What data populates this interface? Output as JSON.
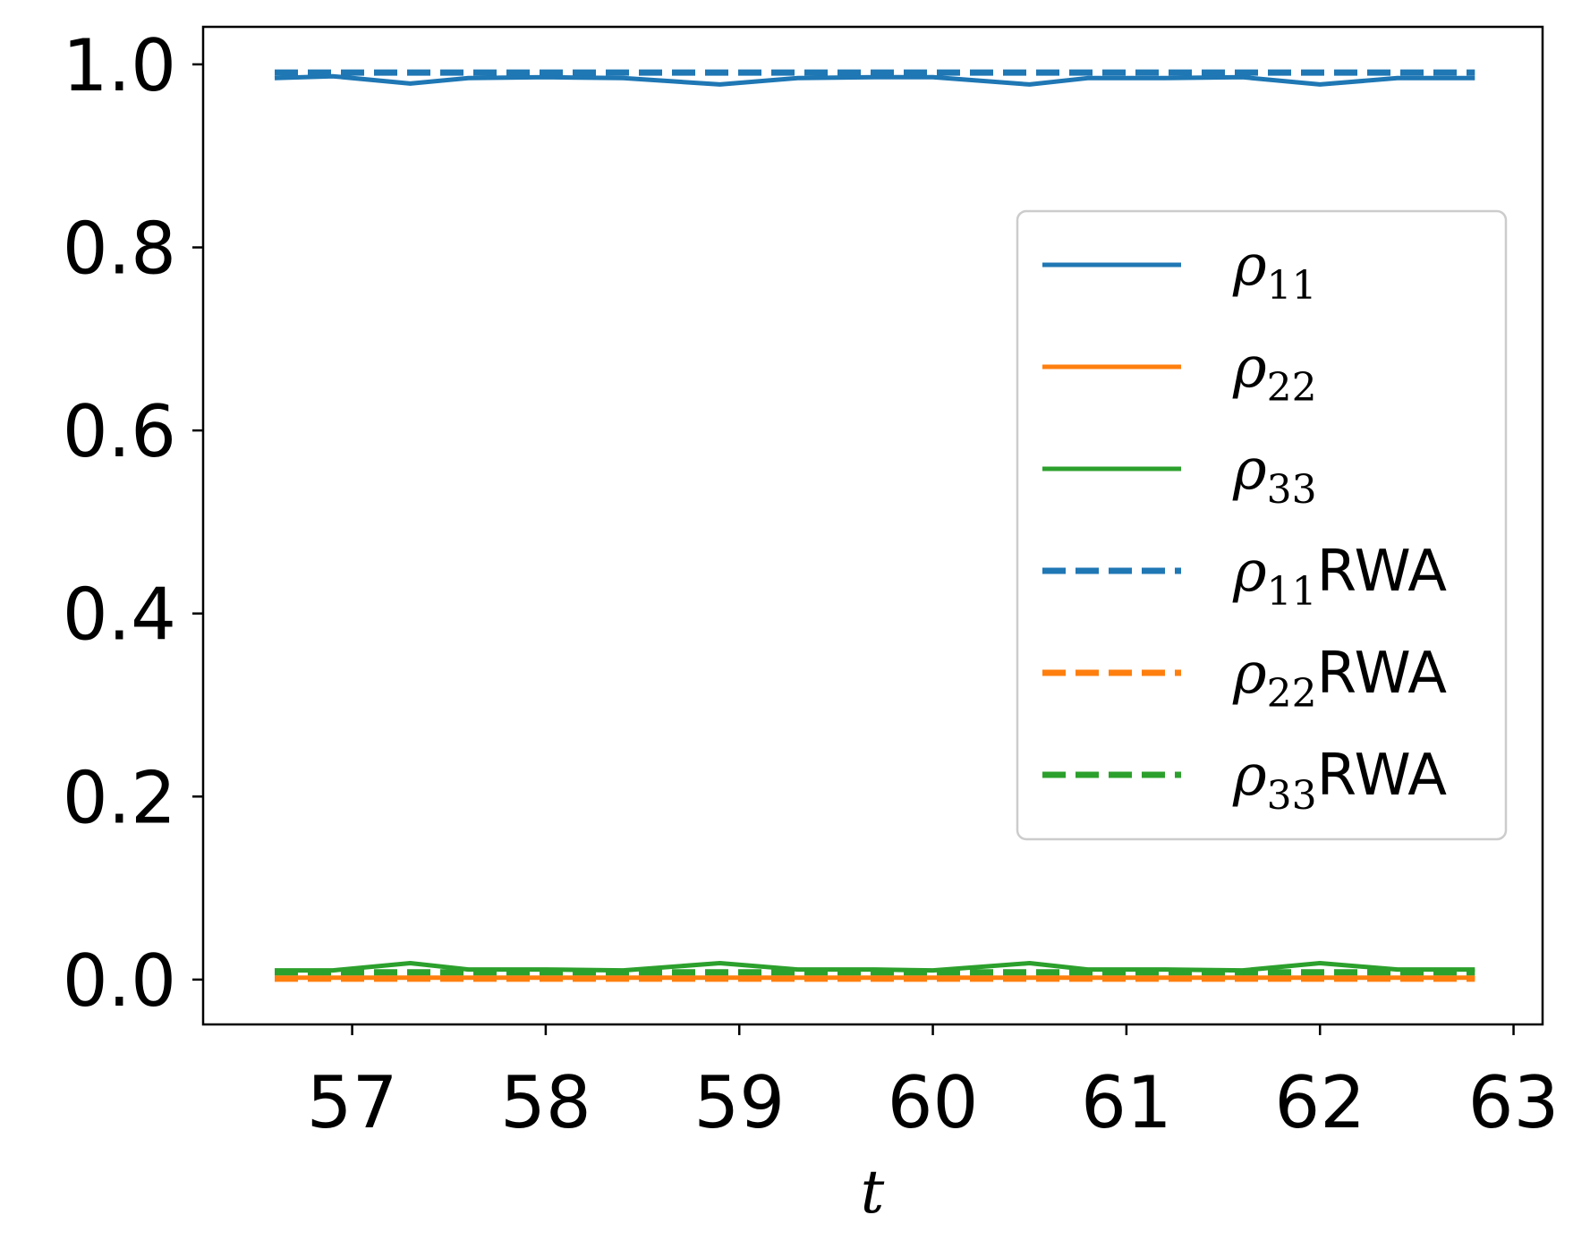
{
  "chart_data": {
    "type": "line",
    "title": "",
    "xlabel": "t",
    "ylabel": "",
    "xlim": [
      56.23,
      63.15
    ],
    "ylim": [
      -0.049,
      1.041
    ],
    "xticks": [
      57,
      58,
      59,
      60,
      61,
      62,
      63
    ],
    "xtick_labels": [
      "57",
      "58",
      "59",
      "60",
      "61",
      "62",
      "63"
    ],
    "yticks": [
      0.0,
      0.2,
      0.4,
      0.6,
      0.8,
      1.0
    ],
    "ytick_labels": [
      "0.0",
      "0.2",
      "0.4",
      "0.6",
      "0.8",
      "1.0"
    ],
    "grid": false,
    "legend_position": "center-right",
    "series": [
      {
        "name": "ρ11",
        "name_base": "ρ",
        "name_sub": "11",
        "name_suffix": "",
        "color": "#1f77b4",
        "style": "solid",
        "x": [
          56.6,
          56.9,
          57.3,
          57.6,
          58.0,
          58.4,
          58.9,
          59.3,
          59.7,
          60.0,
          60.5,
          60.8,
          61.2,
          61.6,
          62.0,
          62.4,
          62.8
        ],
        "y": [
          0.985,
          0.987,
          0.979,
          0.985,
          0.986,
          0.985,
          0.978,
          0.985,
          0.986,
          0.986,
          0.978,
          0.985,
          0.985,
          0.986,
          0.978,
          0.985,
          0.985
        ]
      },
      {
        "name": "ρ22",
        "name_base": "ρ",
        "name_sub": "22",
        "name_suffix": "",
        "color": "#ff7f0e",
        "style": "solid",
        "x": [
          56.6,
          57.6,
          58.6,
          59.6,
          60.6,
          61.6,
          62.8
        ],
        "y": [
          0.002,
          0.002,
          0.002,
          0.002,
          0.002,
          0.002,
          0.002
        ]
      },
      {
        "name": "ρ33",
        "name_base": "ρ",
        "name_sub": "33",
        "name_suffix": "",
        "color": "#2ca02c",
        "style": "solid",
        "x": [
          56.6,
          56.9,
          57.3,
          57.6,
          58.0,
          58.4,
          58.9,
          59.3,
          59.7,
          60.0,
          60.5,
          60.8,
          61.2,
          61.6,
          62.0,
          62.4,
          62.8
        ],
        "y": [
          0.01,
          0.01,
          0.018,
          0.011,
          0.011,
          0.01,
          0.018,
          0.011,
          0.011,
          0.01,
          0.018,
          0.011,
          0.011,
          0.01,
          0.018,
          0.011,
          0.011
        ]
      },
      {
        "name": "ρ11RWA",
        "name_base": "ρ",
        "name_sub": "11",
        "name_suffix": "RWA",
        "color": "#1f77b4",
        "style": "dashed",
        "x": [
          56.6,
          62.8
        ],
        "y": [
          0.991,
          0.991
        ]
      },
      {
        "name": "ρ22RWA",
        "name_base": "ρ",
        "name_sub": "22",
        "name_suffix": "RWA",
        "color": "#ff7f0e",
        "style": "dashed",
        "x": [
          56.6,
          62.8
        ],
        "y": [
          0.001,
          0.001
        ]
      },
      {
        "name": "ρ33RWA",
        "name_base": "ρ",
        "name_sub": "33",
        "name_suffix": "RWA",
        "color": "#2ca02c",
        "style": "dashed",
        "x": [
          56.6,
          62.8
        ],
        "y": [
          0.008,
          0.008
        ]
      }
    ]
  }
}
